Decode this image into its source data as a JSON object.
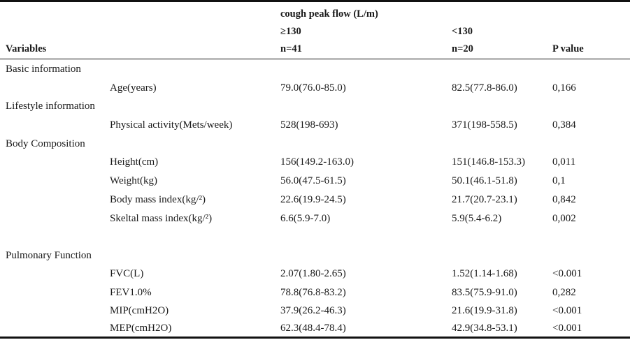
{
  "header": {
    "group_title": "cough peak  flow (L/m)",
    "col1_group": "≥130",
    "col2_group": "<130",
    "variables": "Variables",
    "col1_n": "n=41",
    "col2_n": "n=20",
    "p_value": "P value"
  },
  "sections": [
    {
      "title": "Basic information",
      "rows": [
        {
          "label": "Age(years)",
          "col1": "79.0(76.0-85.0)",
          "col2": "82.5(77.8-86.0)",
          "p": "0,166"
        }
      ]
    },
    {
      "title": "Lifestyle information",
      "rows": [
        {
          "label": "Physical activity(Mets/week)",
          "col1": "528(198-693)",
          "col2": "371(198-558.5)",
          "p": "0,384"
        }
      ]
    },
    {
      "title": "Body Composition",
      "rows": [
        {
          "label": "Height(cm)",
          "col1": "156(149.2-163.0)",
          "col2": "151(146.8-153.3)",
          "p": "0,011"
        },
        {
          "label": "Weight(kg)",
          "col1": "56.0(47.5-61.5)",
          "col2": "50.1(46.1-51.8)",
          "p": "0,1"
        },
        {
          "label": "Body mass index(kg/²)",
          "col1": "22.6(19.9-24.5)",
          "col2": "21.7(20.7-23.1)",
          "p": "0,842"
        },
        {
          "label": "Skeltal mass index(kg/²)",
          "col1": "6.6(5.9-7.0)",
          "col2": "5.9(5.4-6.2)",
          "p": "0,002"
        }
      ]
    },
    {
      "title": "Pulmonary Function",
      "rows": [
        {
          "label": "FVC(L)",
          "col1": "2.07(1.80-2.65)",
          "col2": "1.52(1.14-1.68)",
          "p": "<0.001"
        },
        {
          "label": "FEV1.0%",
          "col1": "78.8(76.8-83.2)",
          "col2": "83.5(75.9-91.0)",
          "p": "0,282"
        },
        {
          "label": "MIP(cmH2O)",
          "col1": "37.9(26.2-46.3)",
          "col2": "21.6(19.9-31.8)",
          "p": "<0.001"
        },
        {
          "label": "MEP(cmH2O)",
          "col1": "62.3(48.4-78.4)",
          "col2": "42.9(34.8-53.1)",
          "p": "<0.001"
        }
      ]
    }
  ]
}
